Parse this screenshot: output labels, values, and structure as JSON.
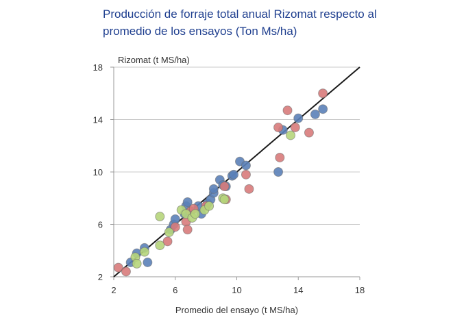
{
  "title_lines": [
    "Producción de forraje total anual Rizomat respecto al",
    "promedio de los ensayos (Ton Ms/ha)"
  ],
  "chart_data": {
    "type": "scatter",
    "title": "Producción de forraje total anual Rizomat respecto al promedio de los ensayos (Ton Ms/ha)",
    "xlabel": "Promedio del ensayo (t MS/ha)",
    "ylabel": "Rizomat (t MS/ha)",
    "xlim": [
      2,
      18
    ],
    "ylim": [
      2,
      18
    ],
    "xticks": [
      2,
      6,
      10,
      14,
      18
    ],
    "yticks": [
      2,
      6,
      10,
      14,
      18
    ],
    "grid": "horizontal",
    "reference_line": {
      "x": [
        2,
        18
      ],
      "y": [
        2,
        18
      ],
      "color": "#1a1a1a"
    },
    "series": [
      {
        "color": "#5b81b8",
        "points": [
          [
            3.1,
            3.1
          ],
          [
            3.5,
            3.8
          ],
          [
            4.0,
            4.2
          ],
          [
            4.2,
            3.1
          ],
          [
            5.7,
            5.6
          ],
          [
            5.9,
            6.0
          ],
          [
            6.0,
            6.4
          ],
          [
            6.6,
            6.8
          ],
          [
            6.7,
            7.4
          ],
          [
            6.8,
            7.7
          ],
          [
            7.0,
            7.0
          ],
          [
            7.5,
            7.4
          ],
          [
            7.7,
            6.8
          ],
          [
            8.1,
            7.6
          ],
          [
            8.3,
            7.9
          ],
          [
            8.5,
            8.4
          ],
          [
            8.5,
            8.7
          ],
          [
            8.9,
            9.4
          ],
          [
            9.1,
            9.0
          ],
          [
            9.3,
            8.9
          ],
          [
            9.7,
            9.7
          ],
          [
            9.8,
            9.8
          ],
          [
            10.2,
            10.8
          ],
          [
            10.6,
            10.5
          ],
          [
            12.7,
            10.0
          ],
          [
            13.0,
            13.2
          ],
          [
            14.0,
            14.1
          ],
          [
            15.1,
            14.4
          ],
          [
            15.6,
            14.8
          ]
        ]
      },
      {
        "color": "#d87b7b",
        "points": [
          [
            2.3,
            2.7
          ],
          [
            2.8,
            2.4
          ],
          [
            5.5,
            4.7
          ],
          [
            6.0,
            5.8
          ],
          [
            6.7,
            6.2
          ],
          [
            6.8,
            5.6
          ],
          [
            7.0,
            7.0
          ],
          [
            7.2,
            7.2
          ],
          [
            8.0,
            7.4
          ],
          [
            9.2,
            8.9
          ],
          [
            9.3,
            7.9
          ],
          [
            10.6,
            9.8
          ],
          [
            10.8,
            8.7
          ],
          [
            12.7,
            13.4
          ],
          [
            12.8,
            11.1
          ],
          [
            13.3,
            14.7
          ],
          [
            13.8,
            13.4
          ],
          [
            14.7,
            13.0
          ],
          [
            15.6,
            16.0
          ]
        ]
      },
      {
        "color": "#b6d57b",
        "points": [
          [
            3.4,
            3.5
          ],
          [
            3.5,
            3.0
          ],
          [
            4.0,
            3.9
          ],
          [
            5.0,
            4.4
          ],
          [
            5.0,
            6.6
          ],
          [
            5.6,
            5.4
          ],
          [
            6.4,
            7.1
          ],
          [
            6.7,
            6.8
          ],
          [
            7.1,
            6.5
          ],
          [
            7.3,
            6.8
          ],
          [
            7.9,
            7.1
          ],
          [
            8.2,
            7.4
          ],
          [
            9.1,
            8.0
          ],
          [
            9.2,
            7.9
          ],
          [
            13.5,
            12.8
          ]
        ]
      }
    ]
  }
}
